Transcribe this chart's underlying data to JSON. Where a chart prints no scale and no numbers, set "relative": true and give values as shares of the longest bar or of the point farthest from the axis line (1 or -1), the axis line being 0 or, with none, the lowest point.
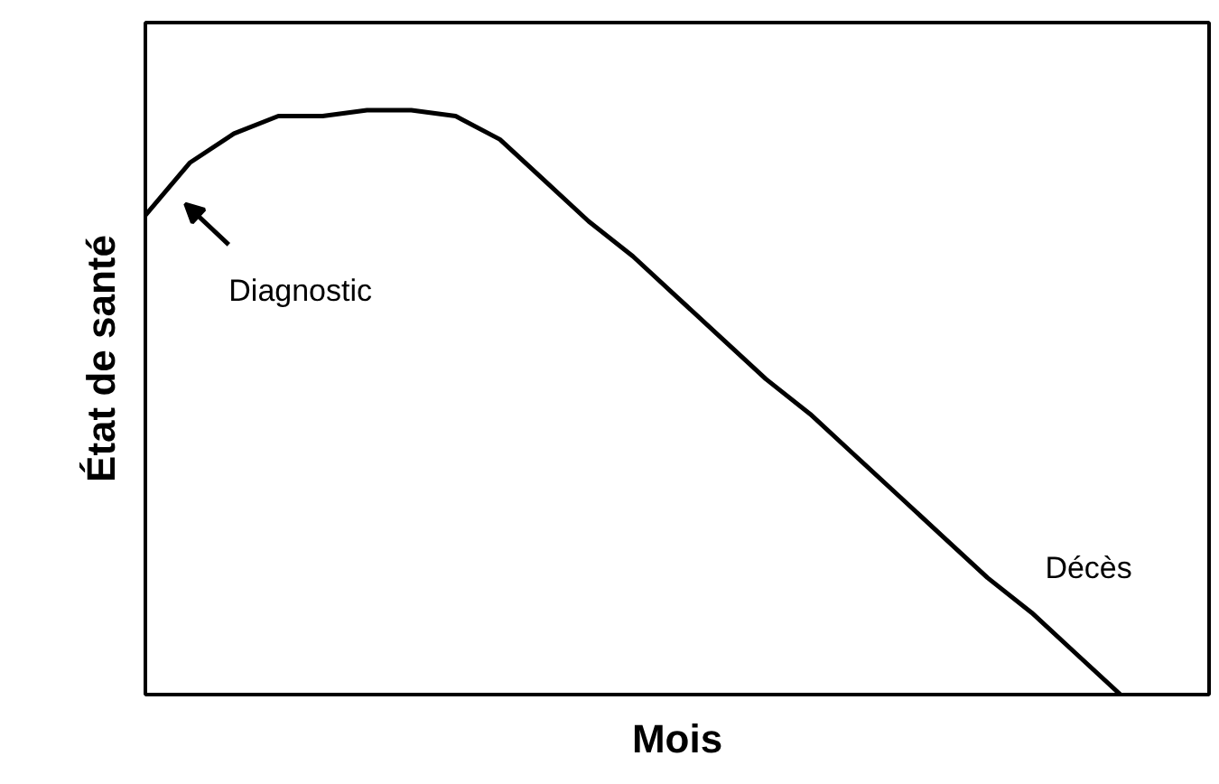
{
  "chart_data": {
    "type": "line",
    "relative": true,
    "xlabel": "Mois",
    "ylabel": "État de santé",
    "categories": [
      null,
      null,
      null,
      null,
      null,
      null,
      null,
      null,
      null,
      null,
      null,
      null,
      null,
      null,
      null,
      null,
      null,
      null,
      null,
      null,
      null,
      null,
      null,
      null,
      null
    ],
    "series": [
      {
        "color": "#000000",
        "values": [
          0.82,
          0.91,
          0.96,
          0.99,
          0.99,
          1.0,
          1.0,
          0.99,
          0.95,
          0.88,
          0.81,
          0.75,
          0.68,
          0.61,
          0.54,
          0.48,
          0.41,
          0.34,
          0.27,
          0.2,
          0.14,
          0.07,
          0.0,
          null,
          null
        ]
      }
    ],
    "annotations": [
      "Diagnostic",
      "Décès"
    ],
    "tick_labels": false,
    "marker": "none",
    "line_style": "solid"
  }
}
